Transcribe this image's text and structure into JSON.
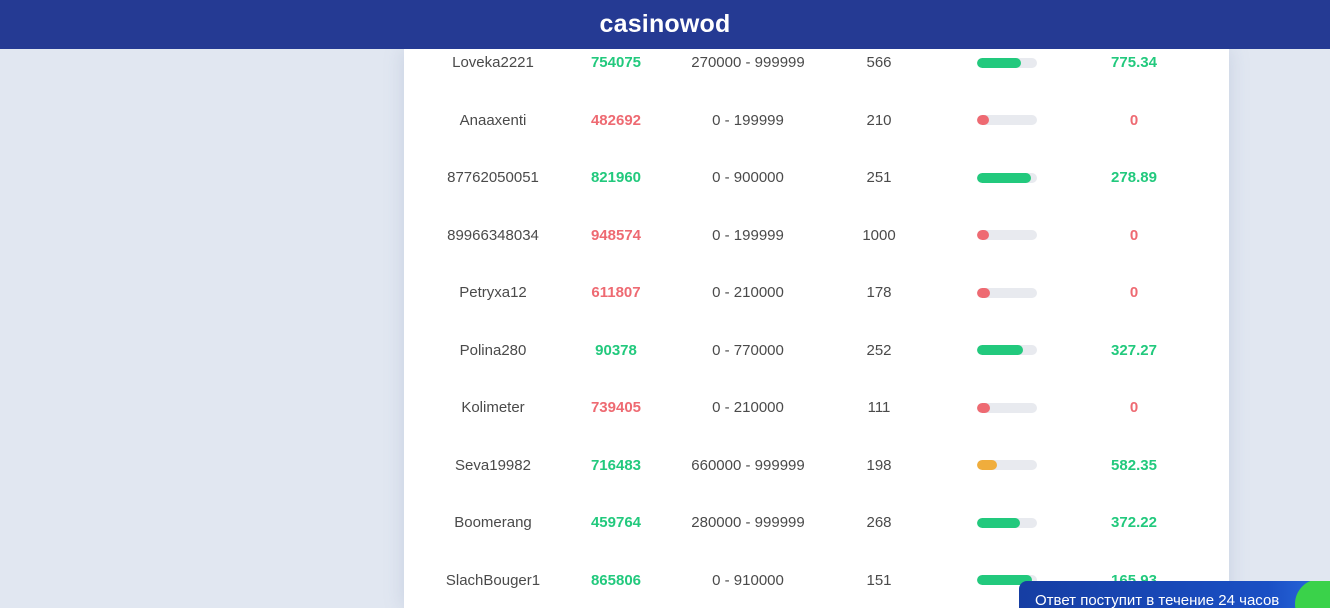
{
  "header": {
    "brand": "casinowod"
  },
  "colors": {
    "header_bg": "#253a93",
    "win": "#22c97d",
    "loss": "#ee6a72",
    "mid": "#f0ad3c",
    "track": "#e8eaef"
  },
  "rows": [
    {
      "user": "Loveka2221",
      "number": "754075",
      "range": "270000 - 999999",
      "count": "566",
      "progress": 0.73,
      "status": "win",
      "payout": "775.34"
    },
    {
      "user": "Anaaxenti",
      "number": "482692",
      "range": "0 - 199999",
      "count": "210",
      "progress": 0.2,
      "status": "loss",
      "payout": "0"
    },
    {
      "user": "87762050051",
      "number": "821960",
      "range": "0 - 900000",
      "count": "251",
      "progress": 0.9,
      "status": "win",
      "payout": "278.89"
    },
    {
      "user": "89966348034",
      "number": "948574",
      "range": "0 - 199999",
      "count": "1000",
      "progress": 0.2,
      "status": "loss",
      "payout": "0"
    },
    {
      "user": "Petryxa12",
      "number": "611807",
      "range": "0 - 210000",
      "count": "178",
      "progress": 0.21,
      "status": "loss",
      "payout": "0"
    },
    {
      "user": "Polina280",
      "number": "90378",
      "range": "0 - 770000",
      "count": "252",
      "progress": 0.77,
      "status": "win",
      "payout": "327.27"
    },
    {
      "user": "Kolimeter",
      "number": "739405",
      "range": "0 - 210000",
      "count": "111",
      "progress": 0.21,
      "status": "loss",
      "payout": "0"
    },
    {
      "user": "Seva19982",
      "number": "716483",
      "range": "660000 - 999999",
      "count": "198",
      "progress": 0.34,
      "status": "mid",
      "payout": "582.35"
    },
    {
      "user": "Boomerang",
      "number": "459764",
      "range": "280000 - 999999",
      "count": "268",
      "progress": 0.72,
      "status": "win",
      "payout": "372.22"
    },
    {
      "user": "SlachBouger1",
      "number": "865806",
      "range": "0 - 910000",
      "count": "151",
      "progress": 0.91,
      "status": "win",
      "payout": "165.93"
    }
  ],
  "toast": {
    "text": "Ответ поступит в течение 24 часов"
  }
}
